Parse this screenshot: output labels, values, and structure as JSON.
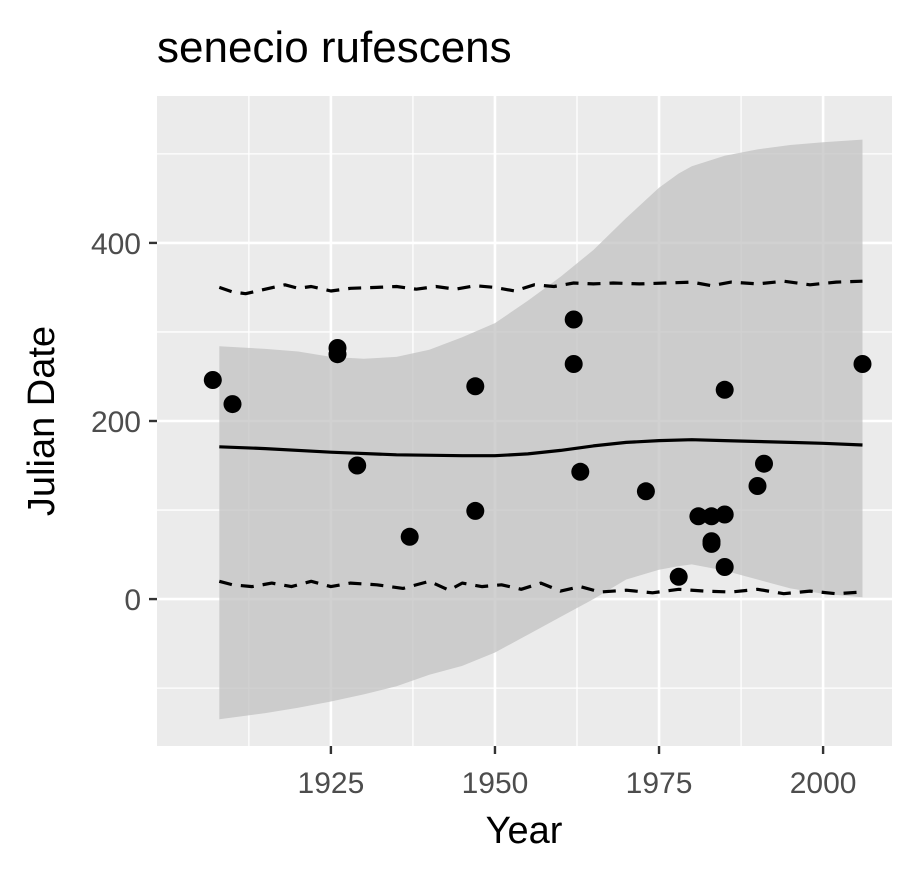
{
  "chart_data": {
    "type": "scatter",
    "title": "senecio rufescens",
    "xlabel": "Year",
    "ylabel": "Julian Date",
    "xlim": [
      1898.5,
      2010.5
    ],
    "ylim": [
      -165,
      565
    ],
    "x_ticks": [
      {
        "value": 1925,
        "label": "1925"
      },
      {
        "value": 1950,
        "label": "1950"
      },
      {
        "value": 1975,
        "label": "1975"
      },
      {
        "value": 2000,
        "label": "2000"
      }
    ],
    "y_ticks": [
      {
        "value": 0,
        "label": "0"
      },
      {
        "value": 200,
        "label": "200"
      },
      {
        "value": 400,
        "label": "400"
      }
    ],
    "x_minor_breaks": [
      1912.5,
      1937.5,
      1962.5,
      1987.5
    ],
    "y_minor_breaks": [
      -100,
      100,
      300,
      500
    ],
    "grid": true,
    "panel_background": "#ebebeb",
    "grid_color": "#ffffff",
    "point_color": "#000000",
    "band_color": "#bfbfbf",
    "points": [
      {
        "x": 1907,
        "y": 246
      },
      {
        "x": 1910,
        "y": 219
      },
      {
        "x": 1926,
        "y": 282
      },
      {
        "x": 1926,
        "y": 275
      },
      {
        "x": 1929,
        "y": 150
      },
      {
        "x": 1937,
        "y": 70
      },
      {
        "x": 1947,
        "y": 239
      },
      {
        "x": 1947,
        "y": 99
      },
      {
        "x": 1962,
        "y": 314
      },
      {
        "x": 1962,
        "y": 264
      },
      {
        "x": 1963,
        "y": 143
      },
      {
        "x": 1973,
        "y": 121
      },
      {
        "x": 1978,
        "y": 25
      },
      {
        "x": 1981,
        "y": 93
      },
      {
        "x": 1983,
        "y": 93
      },
      {
        "x": 1983,
        "y": 65
      },
      {
        "x": 1983,
        "y": 62
      },
      {
        "x": 1985,
        "y": 235
      },
      {
        "x": 1985,
        "y": 95
      },
      {
        "x": 1985,
        "y": 36
      },
      {
        "x": 1990,
        "y": 127
      },
      {
        "x": 1991,
        "y": 152
      },
      {
        "x": 2006,
        "y": 264
      }
    ],
    "fit_line": {
      "x": [
        1908,
        1915,
        1925,
        1935,
        1945,
        1950,
        1955,
        1960,
        1965,
        1970,
        1975,
        1980,
        1985,
        1990,
        1995,
        2000,
        2006
      ],
      "y": [
        171,
        169,
        165,
        162,
        161,
        161,
        163,
        167,
        172,
        176,
        178,
        179,
        178,
        177,
        176,
        175,
        173
      ]
    },
    "confidence_band": {
      "x": [
        1908,
        1915,
        1920,
        1925,
        1930,
        1935,
        1940,
        1945,
        1950,
        1955,
        1960,
        1965,
        1970,
        1975,
        1978,
        1980,
        1985,
        1990,
        1995,
        2000,
        2006
      ],
      "upper": [
        284,
        281,
        278,
        272,
        270,
        272,
        280,
        294,
        310,
        335,
        362,
        392,
        428,
        462,
        478,
        486,
        498,
        505,
        510,
        513,
        516
      ],
      "lower": [
        -135,
        -128,
        -122,
        -115,
        -107,
        -98,
        -85,
        -75,
        -60,
        -40,
        -20,
        0,
        22,
        33,
        37,
        39,
        32,
        22,
        12,
        6,
        2
      ]
    },
    "upper_quantile": {
      "x": [
        1908,
        1910,
        1912,
        1915,
        1918,
        1920,
        1922,
        1925,
        1928,
        1932,
        1935,
        1938,
        1941,
        1944,
        1947,
        1950,
        1953,
        1956,
        1959,
        1962,
        1965,
        1968,
        1972,
        1976,
        1980,
        1983,
        1986,
        1990,
        1994,
        1998,
        2002,
        2006
      ],
      "y": [
        350,
        345,
        343,
        348,
        353,
        349,
        351,
        346,
        349,
        350,
        351,
        348,
        351,
        348,
        352,
        350,
        346,
        353,
        351,
        355,
        354,
        355,
        354,
        355,
        356,
        352,
        356,
        354,
        357,
        353,
        356,
        357
      ]
    },
    "lower_quantile": {
      "x": [
        1908,
        1910,
        1913,
        1916,
        1919,
        1922,
        1925,
        1928,
        1932,
        1936,
        1940,
        1943,
        1945,
        1948,
        1951,
        1954,
        1957,
        1960,
        1963,
        1966,
        1970,
        1974,
        1978,
        1982,
        1986,
        1990,
        1994,
        1998,
        2002,
        2006
      ],
      "y": [
        20,
        16,
        14,
        18,
        14,
        20,
        14,
        18,
        16,
        12,
        20,
        10,
        18,
        14,
        16,
        11,
        18,
        9,
        14,
        8,
        10,
        7,
        11,
        9,
        8,
        11,
        6,
        9,
        6,
        8
      ]
    }
  }
}
